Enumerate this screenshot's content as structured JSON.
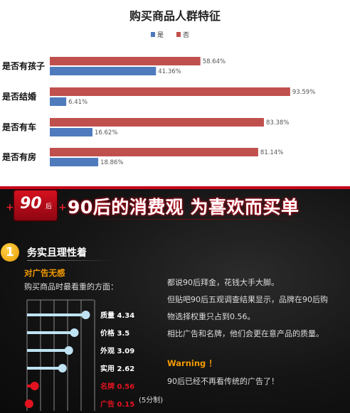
{
  "chart_data": [
    {
      "type": "bar",
      "orientation": "horizontal",
      "title": "购买商品人群特征",
      "legend_position": "top",
      "categories": [
        "是否有孩子",
        "是否结婚",
        "是否有车",
        "是否有房"
      ],
      "series": [
        {
          "name": "是",
          "color": "#4f7bbd",
          "values": [
            41.36,
            6.41,
            16.62,
            18.86
          ],
          "labels": [
            "41.36%",
            "6.41%",
            "16.62%",
            "18.86%"
          ]
        },
        {
          "name": "否",
          "color": "#c0504d",
          "values": [
            58.64,
            93.59,
            83.38,
            81.14
          ],
          "labels": [
            "58.64%",
            "93.59%",
            "83.38%",
            "81.14%"
          ]
        }
      ],
      "xlim": [
        0,
        100
      ],
      "grid": false
    },
    {
      "type": "dot",
      "orientation": "horizontal",
      "scale_note": "(5分制)",
      "xlim": [
        0,
        5
      ],
      "grid": true,
      "items": [
        {
          "label": "质量",
          "value": 4.34,
          "value_text": "4.34",
          "color": "#bfe3f2"
        },
        {
          "label": "价格",
          "value": 3.5,
          "value_text": "3.5",
          "color": "#bfe3f2"
        },
        {
          "label": "外观",
          "value": 3.09,
          "value_text": "3.09",
          "color": "#bfe3f2"
        },
        {
          "label": "实用",
          "value": 2.62,
          "value_text": "2.62",
          "color": "#bfe3f2"
        },
        {
          "label": "名牌",
          "value": 0.56,
          "value_text": "0.56",
          "color": "#e3121f"
        },
        {
          "label": "广告",
          "value": 0.15,
          "value_text": "0.15",
          "color": "#e3121f"
        }
      ]
    }
  ],
  "panel": {
    "badge_num": "90",
    "badge_suffix": "后",
    "headline": "90后的消费观 为喜欢而买单",
    "section_number": "1",
    "section_title": "务实且理性着",
    "ad_label": "对广告无感",
    "question": "购买商品时最看重的方面：",
    "paragraphs": [
      "都说90后拜金，花钱大手大脚。",
      "但贴吧90后五观调查结果显示，品牌在90后购",
      "物选择权重只占到0.56。",
      "相比广告和名牌，他们会更在意产品的质量。"
    ],
    "warning": "Warning ！",
    "closing": "90后已经不再看传统的广告了！"
  }
}
